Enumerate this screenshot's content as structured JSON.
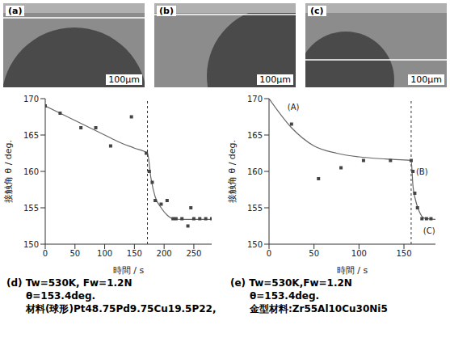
{
  "images": [
    {
      "label": "(a)",
      "scale_bar": "100μm"
    },
    {
      "label": "(b)",
      "scale_bar": "100μm"
    },
    {
      "label": "(c)",
      "scale_bar": "100μm"
    }
  ],
  "chart_data": [
    {
      "type": "scatter",
      "label": "(d)",
      "caption": [
        "Tw=530K,  Fw=1.2N",
        "θ=153.4deg.",
        "材料(球形)Pt48.75Pd9.75Cu19.5P22,"
      ],
      "x_label": "時間 / s",
      "y_label": "接触角 θ / deg.",
      "xlim": [
        0,
        280
      ],
      "xticks": [
        0,
        50,
        100,
        150,
        200,
        250
      ],
      "ylim": [
        150,
        170
      ],
      "yticks": [
        150,
        155,
        160,
        165,
        170
      ],
      "grid": false,
      "vline": 172,
      "series": [
        {
          "type": "scatter",
          "marker": "square",
          "color": "#444444",
          "x": [
            0,
            25,
            60,
            85,
            110,
            145,
            170,
            175,
            180,
            185,
            195,
            205,
            215,
            220,
            230,
            240,
            245,
            250,
            260,
            270,
            280
          ],
          "values": [
            169,
            168,
            166,
            166,
            163.5,
            167.5,
            162.5,
            160,
            158.5,
            156,
            155.5,
            156,
            153.5,
            153.5,
            153.5,
            152.5,
            155,
            153.5,
            153.5,
            153.5,
            153.5
          ]
        },
        {
          "type": "line",
          "color": "#666666",
          "x": [
            0,
            25,
            50,
            75,
            100,
            125,
            150,
            172,
            178,
            185,
            195,
            205,
            215,
            230,
            250,
            280
          ],
          "values": [
            169,
            168,
            167,
            166,
            165,
            164,
            163.2,
            162.5,
            159,
            156.5,
            155,
            154,
            153.5,
            153.4,
            153.4,
            153.4
          ]
        }
      ]
    },
    {
      "type": "scatter",
      "label": "(e)",
      "caption": [
        "Tw=530K,Fw=1.2N",
        "θ=153.4deg.",
        "金型材料:Zr55Al10Cu30Ni5"
      ],
      "x_label": "時間 / s",
      "y_label": "接触角 θ / deg.",
      "xlim": [
        0,
        185
      ],
      "xticks": [
        0,
        50,
        100,
        150
      ],
      "ylim": [
        150,
        170
      ],
      "yticks": [
        150,
        155,
        160,
        165,
        170
      ],
      "grid": false,
      "vline": 158,
      "annotations": [
        {
          "text": "(A)",
          "x": 27,
          "y": 168.8
        },
        {
          "text": "(B)",
          "x": 170,
          "y": 160
        },
        {
          "text": "(C)",
          "x": 178,
          "y": 151.8
        }
      ],
      "series": [
        {
          "type": "scatter",
          "marker": "square",
          "color": "#444444",
          "x": [
            25,
            55,
            80,
            105,
            135,
            158,
            160,
            162,
            165,
            170,
            175,
            180
          ],
          "values": [
            166.5,
            159,
            160.5,
            161.5,
            161.5,
            161.5,
            160,
            157,
            155,
            153.5,
            153.5,
            153.5
          ]
        },
        {
          "type": "line",
          "color": "#666666",
          "x": [
            0,
            25,
            50,
            75,
            100,
            130,
            158,
            160,
            163,
            167,
            172,
            185
          ],
          "values": [
            170,
            166,
            163.5,
            162.5,
            162,
            161.7,
            161.5,
            158,
            156,
            154.5,
            153.6,
            153.4
          ]
        }
      ]
    }
  ]
}
